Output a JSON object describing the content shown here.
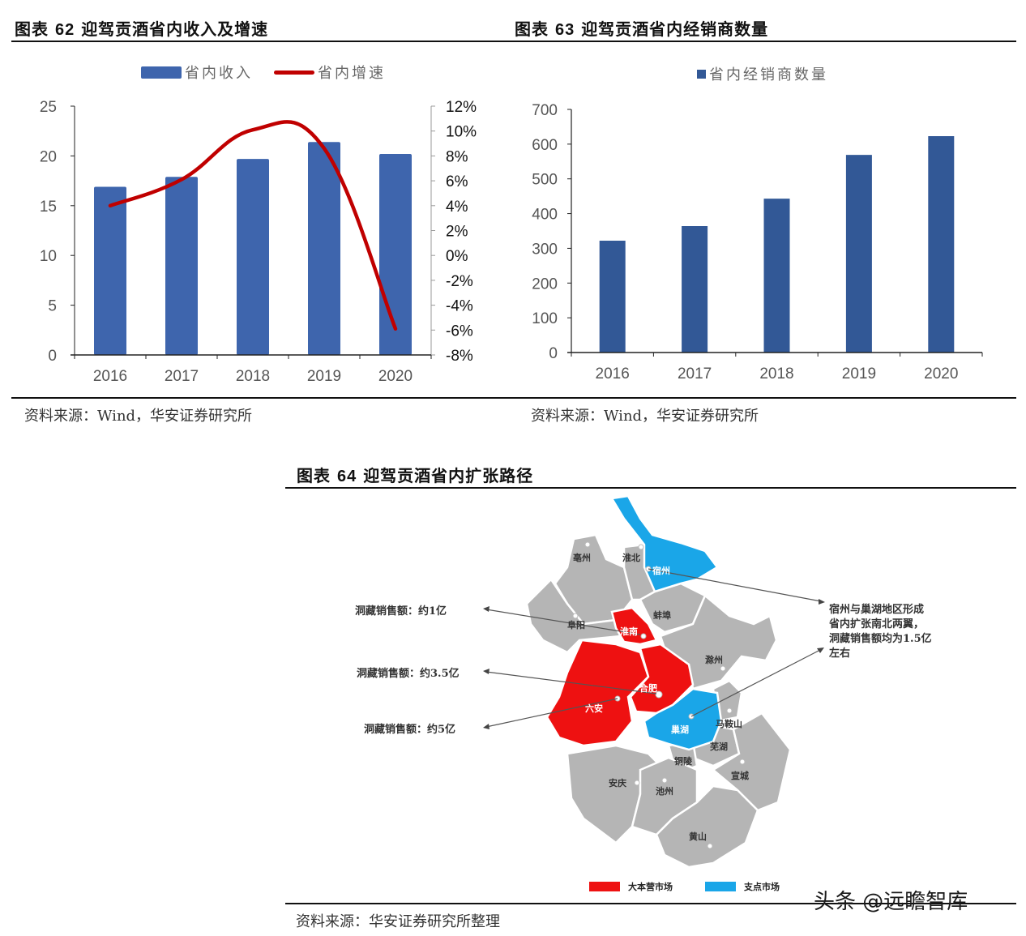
{
  "figure62": {
    "title_prefix": "图表",
    "title_num": "62",
    "title_text": "迎驾贡酒省内收入及增速",
    "legend": {
      "bar_label": "省内收入",
      "line_label": "省内增速"
    },
    "source": "资料来源：Wind，华安证券研究所"
  },
  "figure63": {
    "title_prefix": "图表",
    "title_num": "63",
    "title_text": "迎驾贡酒省内经销商数量",
    "legend": {
      "bar_label": "省内经销商数量"
    },
    "source": "资料来源：Wind，华安证券研究所"
  },
  "figure64": {
    "title_prefix": "图表",
    "title_num": "64",
    "title_text": "迎驾贡酒省内扩张路径",
    "annotations": {
      "huainan": "洞藏销售额：约1亿",
      "hefei": "洞藏销售额：约3.5亿",
      "luan": "洞藏销售额：约5亿",
      "wings": [
        "宿州与巢湖地区形成",
        "省内扩张南北两翼，",
        "洞藏销售额均为1.5亿",
        "左右"
      ]
    },
    "cities": {
      "bozhou": "亳州",
      "huaibei": "淮北",
      "suzhou": "宿州",
      "bengbu": "蚌埠",
      "fuyang": "阜阳",
      "huainan": "淮南",
      "chuzhou": "滁州",
      "hefei": "合肥",
      "luan": "六安",
      "chaohu": "巢湖",
      "maanshan": "马鞍山",
      "wuhu": "芜湖",
      "tongling": "铜陵",
      "anqing": "安庆",
      "chizhou": "池州",
      "xuancheng": "宣城",
      "huangshan": "黄山"
    },
    "legend": {
      "base_market": "大本营市场",
      "pivot_market": "支点市场"
    },
    "colors": {
      "base": "#ee1111",
      "pivot": "#1aa6e8",
      "other": "#b5b5b5"
    },
    "source": "资料来源：华安证券研究所整理"
  },
  "watermark": "头条 @远瞻智库",
  "chart_data": [
    {
      "id": "figure62",
      "type": "bar+line",
      "title": "图表 62 迎驾贡酒省内收入及增速",
      "categories": [
        "2016",
        "2017",
        "2018",
        "2019",
        "2020"
      ],
      "series": [
        {
          "name": "省内收入",
          "type": "bar",
          "axis": "left",
          "color": "#3e65ad",
          "values": [
            16.9,
            17.9,
            19.7,
            21.4,
            20.2
          ]
        },
        {
          "name": "省内增速",
          "type": "line",
          "axis": "right",
          "color": "#c00000",
          "values": [
            4.0,
            6.1,
            10.1,
            8.6,
            -5.9
          ],
          "unit": "%"
        }
      ],
      "left_axis": {
        "ticks": [
          0,
          5,
          10,
          15,
          20,
          25
        ],
        "ylim": [
          0,
          25
        ]
      },
      "right_axis": {
        "ticks": [
          "-8%",
          "-6%",
          "-4%",
          "-2%",
          "0%",
          "2%",
          "4%",
          "6%",
          "8%",
          "10%",
          "12%"
        ],
        "ylim": [
          -8,
          12
        ]
      },
      "legend_position": "top",
      "grid": false
    },
    {
      "id": "figure63",
      "type": "bar",
      "title": "图表 63 迎驾贡酒省内经销商数量",
      "categories": [
        "2016",
        "2017",
        "2018",
        "2019",
        "2020"
      ],
      "series": [
        {
          "name": "省内经销商数量",
          "color": "#325896",
          "values": [
            322,
            364,
            443,
            569,
            623
          ]
        }
      ],
      "left_axis": {
        "ticks": [
          0,
          100,
          200,
          300,
          400,
          500,
          600,
          700
        ],
        "ylim": [
          0,
          700
        ]
      },
      "legend_position": "top",
      "grid": false
    }
  ]
}
